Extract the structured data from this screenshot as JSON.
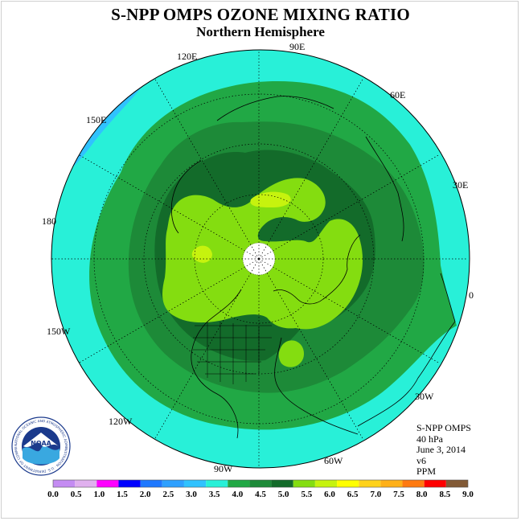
{
  "title": "S-NPP OMPS OZONE MIXING RATIO",
  "subtitle": "Northern Hemisphere",
  "map": {
    "projection": "north-polar-stereographic",
    "longitude_labels": [
      "120E",
      "90E",
      "60E",
      "150E",
      "30E",
      "180",
      "0",
      "150W",
      "30W",
      "120W",
      "60W",
      "90W"
    ],
    "no_data_region": "North Pole",
    "no_data_color": "#ffffff"
  },
  "info": {
    "instrument": "S-NPP OMPS",
    "level": "40 hPa",
    "date": "June 3, 2014",
    "version": "v6",
    "units": "PPM"
  },
  "colorbar": {
    "ticks": [
      "0.0",
      "0.5",
      "1.0",
      "1.5",
      "2.0",
      "2.5",
      "3.0",
      "3.5",
      "4.0",
      "4.5",
      "5.0",
      "5.5",
      "6.0",
      "6.5",
      "7.0",
      "7.5",
      "8.0",
      "8.5",
      "9.0"
    ],
    "colors": [
      "#c48cf2",
      "#e0b0ee",
      "#ff00ff",
      "#0000ff",
      "#1e78ff",
      "#2ea0ff",
      "#30c2ff",
      "#28f0d8",
      "#21a845",
      "#1d8a38",
      "#136b2a",
      "#84dd10",
      "#c6f30e",
      "#ffff00",
      "#ffd21a",
      "#ffb018",
      "#ff7a10",
      "#ff0000",
      "#825a36"
    ]
  },
  "logo": {
    "text": "NOAA",
    "ring_text": "NATIONAL OCEANIC AND ATMOSPHERIC ADMINISTRATION · U.S. DEPARTMENT OF COMMERCE"
  }
}
